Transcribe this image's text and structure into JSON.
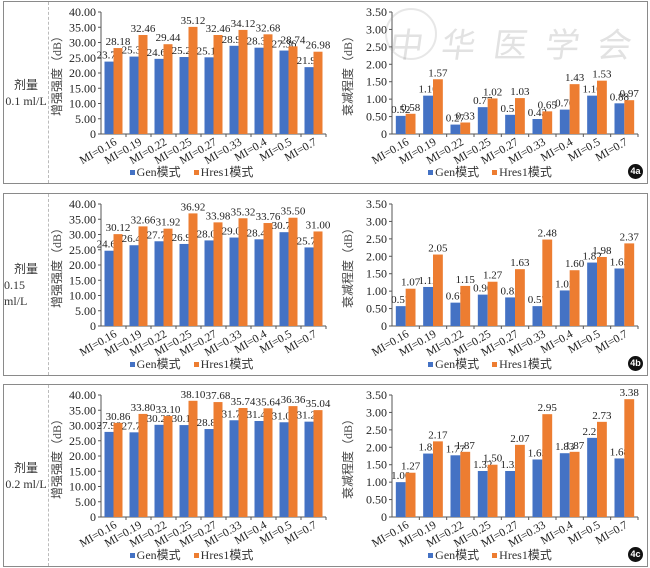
{
  "colors": {
    "gen": "#4472C4",
    "hres": "#ED7D31"
  },
  "watermark": "中华医学会",
  "legend": {
    "gen": "Gen模式",
    "hres": "Hres1模式"
  },
  "panels": [
    {
      "tag": "4a",
      "dose_label": "剂量",
      "dose_value": "0.1 ml/L"
    },
    {
      "tag": "4b",
      "dose_label": "剂量",
      "dose_value": "0.15 ml/L"
    },
    {
      "tag": "4c",
      "dose_label": "剂量",
      "dose_value": "0.2 ml/L"
    }
  ],
  "chart_data": [
    {
      "id": "4a-left",
      "type": "bar",
      "title": "",
      "categories": [
        "MI=0.16",
        "MI=0.19",
        "MI=0.22",
        "MI=0.25",
        "MI=0.27",
        "MI=0.33",
        "MI=0.4",
        "MI=0.5",
        "MI=0.7"
      ],
      "series": [
        {
          "name": "Gen模式",
          "values": [
            23.74,
            25.38,
            24.64,
            25.24,
            25.14,
            28.92,
            28.3,
            27.36,
            21.92
          ]
        },
        {
          "name": "Hres1模式",
          "values": [
            28.18,
            32.46,
            29.44,
            35.12,
            32.46,
            34.12,
            32.68,
            28.74,
            26.98
          ]
        }
      ],
      "xlabel": "",
      "ylabel": "增强强度（dB）",
      "ylim": [
        0,
        40
      ],
      "yticks": [
        "0",
        "5.00",
        "10.00",
        "15.00",
        "20.00",
        "25.00",
        "30.00",
        "35.00",
        "40.00"
      ],
      "decimals": 2,
      "legend": "bottom",
      "grid": false
    },
    {
      "id": "4a-right",
      "type": "bar",
      "title": "",
      "categories": [
        "MI=0.16",
        "MI=0.19",
        "MI=0.22",
        "MI=0.25",
        "MI=0.27",
        "MI=0.33",
        "MI=0.4",
        "MI=0.5",
        "MI=0.7"
      ],
      "series": [
        {
          "name": "Gen模式",
          "values": [
            0.52,
            1.1,
            0.27,
            0.77,
            0.55,
            0.43,
            0.7,
            1.1,
            0.88
          ]
        },
        {
          "name": "Hres1模式",
          "values": [
            0.58,
            1.57,
            0.33,
            1.02,
            1.03,
            0.65,
            1.43,
            1.53,
            0.97
          ]
        }
      ],
      "xlabel": "",
      "ylabel": "衰减程度（dB）",
      "ylim": [
        0,
        3.5
      ],
      "yticks": [
        "0",
        "0.50",
        "1.00",
        "1.50",
        "2.00",
        "2.50",
        "3.00",
        "3.50"
      ],
      "decimals": 2,
      "legend": "bottom",
      "grid": false
    },
    {
      "id": "4b-left",
      "type": "bar",
      "title": "",
      "categories": [
        "MI=0.16",
        "MI=0.19",
        "MI=0.22",
        "MI=0.25",
        "MI=0.27",
        "MI=0.33",
        "MI=0.4",
        "MI=0.5",
        "MI=0.7"
      ],
      "series": [
        {
          "name": "Gen模式",
          "values": [
            24.68,
            26.48,
            27.78,
            26.9,
            28.06,
            29.0,
            28.42,
            30.76,
            25.76
          ]
        },
        {
          "name": "Hres1模式",
          "values": [
            30.12,
            32.66,
            31.92,
            36.92,
            33.98,
            35.32,
            33.76,
            35.5,
            31.0
          ]
        }
      ],
      "xlabel": "",
      "ylabel": "增强强度（dB）",
      "ylim": [
        0,
        40
      ],
      "yticks": [
        "0",
        "5.00",
        "10.00",
        "15.00",
        "20.00",
        "25.00",
        "30.00",
        "35.00",
        "40.00"
      ],
      "decimals": 2,
      "legend": "bottom",
      "grid": false
    },
    {
      "id": "4b-right",
      "type": "bar",
      "title": "",
      "categories": [
        "MI=0.16",
        "MI=0.19",
        "MI=0.22",
        "MI=0.25",
        "MI=0.27",
        "MI=0.33",
        "MI=0.4",
        "MI=0.5",
        "MI=0.7"
      ],
      "series": [
        {
          "name": "Gen模式",
          "values": [
            0.57,
            1.12,
            0.67,
            0.9,
            0.82,
            0.57,
            1.02,
            1.82,
            1.65
          ]
        },
        {
          "name": "Hres1模式",
          "values": [
            1.07,
            2.05,
            1.15,
            1.27,
            1.63,
            2.48,
            1.6,
            1.98,
            2.37
          ]
        }
      ],
      "xlabel": "",
      "ylabel": "衰减程度（dB）",
      "ylim": [
        0,
        3.5
      ],
      "yticks": [
        "0",
        "0.50",
        "1.00",
        "1.50",
        "2.00",
        "2.50",
        "3.00",
        "3.50"
      ],
      "decimals": 2,
      "legend": "bottom",
      "grid": false
    },
    {
      "id": "4c-left",
      "type": "bar",
      "title": "",
      "categories": [
        "MI=0.16",
        "MI=0.19",
        "MI=0.22",
        "MI=0.25",
        "MI=0.27",
        "MI=0.33",
        "MI=0.4",
        "MI=0.5",
        "MI=0.7"
      ],
      "series": [
        {
          "name": "Gen模式",
          "values": [
            27.9,
            27.76,
            30.22,
            30.14,
            28.84,
            31.72,
            31.48,
            31.06,
            31.26
          ]
        },
        {
          "name": "Hres1模式",
          "values": [
            30.86,
            33.8,
            33.1,
            38.1,
            37.68,
            35.74,
            35.64,
            36.36,
            35.04
          ]
        }
      ],
      "xlabel": "",
      "ylabel": "增强强度（dB）",
      "ylim": [
        0,
        40
      ],
      "yticks": [
        "0",
        "5.00",
        "10.00",
        "15.00",
        "20.00",
        "25.00",
        "30.00",
        "35.00",
        "40.00"
      ],
      "decimals": 2,
      "legend": "bottom",
      "grid": false
    },
    {
      "id": "4c-right",
      "type": "bar",
      "title": "",
      "categories": [
        "MI=0.16",
        "MI=0.19",
        "MI=0.22",
        "MI=0.25",
        "MI=0.27",
        "MI=0.33",
        "MI=0.4",
        "MI=0.5",
        "MI=0.7"
      ],
      "series": [
        {
          "name": "Gen模式",
          "values": [
            1.0,
            1.82,
            1.77,
            1.32,
            1.32,
            1.65,
            1.83,
            2.27,
            1.68
          ]
        },
        {
          "name": "Hres1模式",
          "values": [
            1.27,
            2.17,
            1.87,
            1.5,
            2.07,
            2.95,
            1.87,
            2.73,
            3.38
          ]
        }
      ],
      "xlabel": "",
      "ylabel": "衰减程度（dB）",
      "ylim": [
        0,
        3.5
      ],
      "yticks": [
        "0",
        "0.50",
        "1.00",
        "1.50",
        "2.00",
        "2.50",
        "3.00",
        "3.50"
      ],
      "decimals": 2,
      "legend": "bottom",
      "grid": false
    }
  ]
}
